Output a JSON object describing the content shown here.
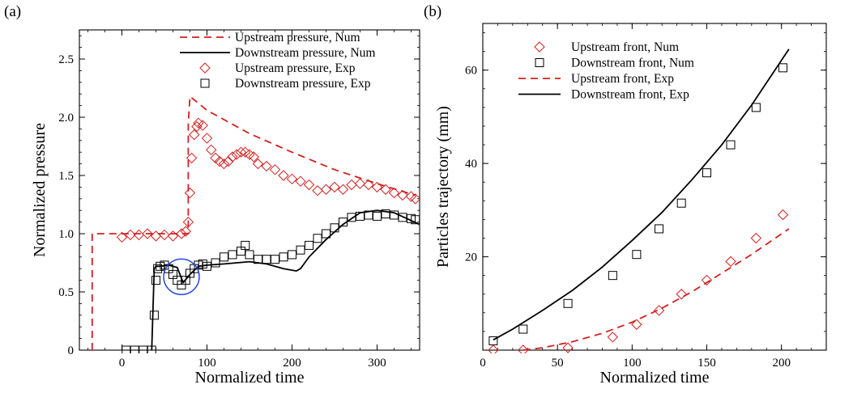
{
  "chart_data": [
    {
      "panel": "(a)",
      "type": "line",
      "xlabel": "Normalized time",
      "ylabel": "Normalized pressure",
      "xlim": [
        -50,
        350
      ],
      "ylim": [
        0,
        2.75
      ],
      "xticks": [
        "0",
        "100",
        "200",
        "300"
      ],
      "yticks": [
        "0",
        "0.5",
        "1.0",
        "1.5",
        "2.0",
        "2.5"
      ],
      "legend_position": "top-right",
      "series": [
        {
          "name": "Upstream pressure, Num",
          "style": "dashed",
          "color": "#d32020",
          "x": [
            -35,
            -35,
            -35,
            0,
            40,
            60,
            78,
            78,
            80,
            100,
            150,
            200,
            250,
            300,
            345
          ],
          "y": [
            0,
            0,
            1.0,
            1.0,
            1.0,
            1.0,
            1.0,
            1.95,
            2.18,
            2.06,
            1.86,
            1.7,
            1.55,
            1.43,
            1.33
          ]
        },
        {
          "name": "Downstream pressure, Num",
          "style": "solid",
          "color": "#000000",
          "x": [
            35,
            38,
            40,
            45,
            55,
            65,
            72,
            80,
            90,
            100,
            120,
            150,
            170,
            190,
            205,
            210,
            220,
            240,
            260,
            280,
            300,
            320,
            350
          ],
          "y": [
            0,
            0.7,
            0.72,
            0.72,
            0.73,
            0.71,
            0.58,
            0.65,
            0.72,
            0.73,
            0.74,
            0.76,
            0.74,
            0.7,
            0.68,
            0.7,
            0.8,
            0.95,
            1.08,
            1.18,
            1.2,
            1.18,
            1.08
          ]
        },
        {
          "name": "Upstream pressure, Exp",
          "style": "diamond",
          "color": "#d32020",
          "x": [
            0,
            10,
            20,
            30,
            40,
            50,
            60,
            70,
            75,
            78,
            80,
            82,
            85,
            88,
            90,
            95,
            100,
            105,
            110,
            115,
            120,
            125,
            130,
            135,
            140,
            145,
            150,
            155,
            160,
            170,
            180,
            190,
            200,
            210,
            220,
            230,
            240,
            250,
            260,
            270,
            280,
            290,
            300,
            310,
            320,
            330,
            340,
            345
          ],
          "y": [
            0.97,
            0.99,
            0.99,
            1.0,
            0.98,
            0.99,
            0.98,
            1.0,
            1.02,
            1.1,
            1.35,
            1.65,
            1.85,
            1.92,
            1.95,
            1.93,
            1.82,
            1.72,
            1.65,
            1.62,
            1.6,
            1.62,
            1.66,
            1.68,
            1.7,
            1.7,
            1.68,
            1.66,
            1.6,
            1.58,
            1.55,
            1.5,
            1.47,
            1.45,
            1.42,
            1.37,
            1.38,
            1.4,
            1.38,
            1.42,
            1.43,
            1.42,
            1.4,
            1.38,
            1.35,
            1.33,
            1.32,
            1.3
          ]
        },
        {
          "name": "Downstream pressure, Exp",
          "style": "square",
          "color": "#000000",
          "x": [
            5,
            15,
            25,
            35,
            38,
            40,
            42,
            45,
            50,
            55,
            60,
            65,
            70,
            75,
            80,
            85,
            90,
            95,
            100,
            110,
            120,
            130,
            140,
            145,
            150,
            160,
            170,
            180,
            190,
            200,
            210,
            220,
            230,
            240,
            250,
            260,
            270,
            280,
            290,
            300,
            310,
            320,
            330,
            340,
            345
          ],
          "y": [
            0,
            0,
            0,
            0,
            0.3,
            0.6,
            0.7,
            0.72,
            0.73,
            0.7,
            0.65,
            0.6,
            0.56,
            0.6,
            0.66,
            0.7,
            0.73,
            0.74,
            0.72,
            0.75,
            0.8,
            0.82,
            0.85,
            0.9,
            0.82,
            0.78,
            0.78,
            0.78,
            0.8,
            0.82,
            0.86,
            0.9,
            0.96,
            1.0,
            1.05,
            1.1,
            1.14,
            1.15,
            1.16,
            1.15,
            1.17,
            1.16,
            1.14,
            1.13,
            1.12
          ]
        }
      ],
      "annotations": [
        {
          "type": "circle",
          "x": 70,
          "y": 0.63,
          "color": "#2040e0"
        }
      ]
    },
    {
      "panel": "(b)",
      "type": "line",
      "xlabel": "Normalized time",
      "ylabel": "Particles trajectory (mm)",
      "xlim": [
        0,
        230
      ],
      "ylim": [
        0,
        70
      ],
      "xticks": [
        "0",
        "50",
        "100",
        "150",
        "200"
      ],
      "yticks": [
        "20",
        "40",
        "60"
      ],
      "legend_position": "top-left",
      "series": [
        {
          "name": "Upstream front, Num",
          "style": "diamond",
          "color": "#d32020",
          "x": [
            7,
            27,
            57,
            87,
            103,
            118,
            133,
            150,
            166,
            183,
            201
          ],
          "y": [
            0,
            0,
            0.5,
            2.8,
            5.5,
            8.5,
            12,
            15,
            19,
            24,
            29
          ]
        },
        {
          "name": "Downstream front, Num",
          "style": "square",
          "color": "#000000",
          "x": [
            7,
            27,
            57,
            87,
            103,
            118,
            133,
            150,
            166,
            183,
            201
          ],
          "y": [
            2,
            4.5,
            10,
            16,
            20.5,
            26,
            31.5,
            38,
            44,
            52,
            60.5
          ]
        },
        {
          "name": "Upstream front, Exp",
          "style": "dashed",
          "color": "#d32020",
          "x": [
            27,
            40,
            60,
            80,
            100,
            120,
            140,
            160,
            180,
            205
          ],
          "y": [
            0,
            0.5,
            1.8,
            3.6,
            6,
            9,
            12.5,
            16.5,
            20.5,
            26
          ]
        },
        {
          "name": "Downstream front, Exp",
          "style": "solid",
          "color": "#000000",
          "x": [
            7,
            20,
            40,
            60,
            80,
            100,
            120,
            140,
            160,
            180,
            205
          ],
          "y": [
            2.2,
            4.5,
            8.5,
            12.8,
            17.8,
            23.5,
            29.5,
            36.5,
            44,
            52.5,
            64.5
          ]
        }
      ]
    }
  ]
}
